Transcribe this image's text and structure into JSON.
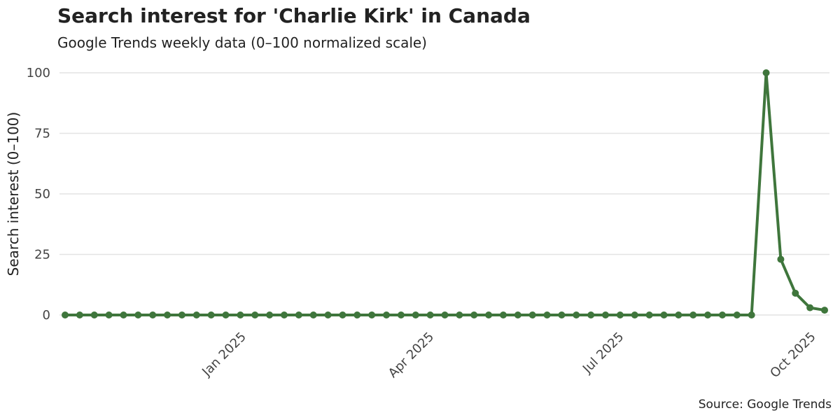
{
  "chart_data": {
    "type": "line",
    "title": "Search interest for 'Charlie Kirk' in Canada",
    "subtitle": "Google Trends weekly data (0–100 normalized scale)",
    "y_label": "Search interest (0–100)",
    "source": "Source: Google Trends",
    "x": [
      "2024-10-06",
      "2024-10-13",
      "2024-10-20",
      "2024-10-27",
      "2024-11-03",
      "2024-11-10",
      "2024-11-17",
      "2024-11-24",
      "2024-12-01",
      "2024-12-08",
      "2024-12-15",
      "2024-12-22",
      "2024-12-29",
      "2025-01-05",
      "2025-01-12",
      "2025-01-19",
      "2025-01-26",
      "2025-02-02",
      "2025-02-09",
      "2025-02-16",
      "2025-02-23",
      "2025-03-02",
      "2025-03-09",
      "2025-03-16",
      "2025-03-23",
      "2025-03-30",
      "2025-04-06",
      "2025-04-13",
      "2025-04-20",
      "2025-04-27",
      "2025-05-04",
      "2025-05-11",
      "2025-05-18",
      "2025-05-25",
      "2025-06-01",
      "2025-06-08",
      "2025-06-15",
      "2025-06-22",
      "2025-06-29",
      "2025-07-06",
      "2025-07-13",
      "2025-07-20",
      "2025-07-27",
      "2025-08-03",
      "2025-08-10",
      "2025-08-17",
      "2025-08-24",
      "2025-08-31",
      "2025-09-07",
      "2025-09-14",
      "2025-09-21",
      "2025-09-28",
      "2025-10-05"
    ],
    "series": [
      {
        "name": "Charlie Kirk",
        "color": "#3f763c",
        "values": [
          0,
          0,
          0,
          0,
          0,
          0,
          0,
          0,
          0,
          0,
          0,
          0,
          0,
          0,
          0,
          0,
          0,
          0,
          0,
          0,
          0,
          0,
          0,
          0,
          0,
          0,
          0,
          0,
          0,
          0,
          0,
          0,
          0,
          0,
          0,
          0,
          0,
          0,
          0,
          0,
          0,
          0,
          0,
          0,
          0,
          0,
          0,
          0,
          100,
          23,
          9,
          3,
          2
        ]
      }
    ],
    "xlim": [
      "2024-10-06",
      "2025-10-05"
    ],
    "xticks": [
      {
        "value": "2025-01-01",
        "label": "Jan 2025"
      },
      {
        "value": "2025-04-01",
        "label": "Apr 2025"
      },
      {
        "value": "2025-07-01",
        "label": "Jul 2025"
      },
      {
        "value": "2025-10-01",
        "label": "Oct 2025"
      }
    ],
    "ylim": [
      0,
      100
    ],
    "yticks": [
      0,
      25,
      50,
      75,
      100
    ],
    "grid": true
  }
}
